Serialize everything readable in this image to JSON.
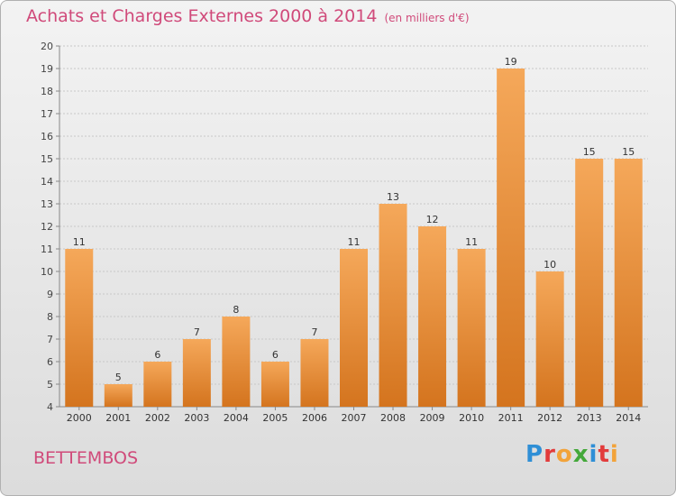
{
  "header": {
    "title": "Achats et Charges Externes 2000 à 2014",
    "subtitle": "(en milliers d'€)"
  },
  "footer": {
    "town": "BETTEMBOS",
    "logo": "Proxiti"
  },
  "colors": {
    "bar_light": "#f5a85a",
    "bar_dark": "#d4741e",
    "title": "#d04a7a"
  },
  "chart_data": {
    "type": "bar",
    "categories": [
      "2000",
      "2001",
      "2002",
      "2003",
      "2004",
      "2005",
      "2006",
      "2007",
      "2008",
      "2009",
      "2010",
      "2011",
      "2012",
      "2013",
      "2014"
    ],
    "values": [
      11,
      5,
      6,
      7,
      8,
      6,
      7,
      11,
      13,
      12,
      11,
      19,
      10,
      15,
      15
    ],
    "ylim": [
      4,
      20
    ],
    "yticks": [
      4,
      5,
      6,
      7,
      8,
      9,
      10,
      11,
      12,
      13,
      14,
      15,
      16,
      17,
      18,
      19,
      20
    ],
    "grid": true,
    "legend": "none"
  }
}
